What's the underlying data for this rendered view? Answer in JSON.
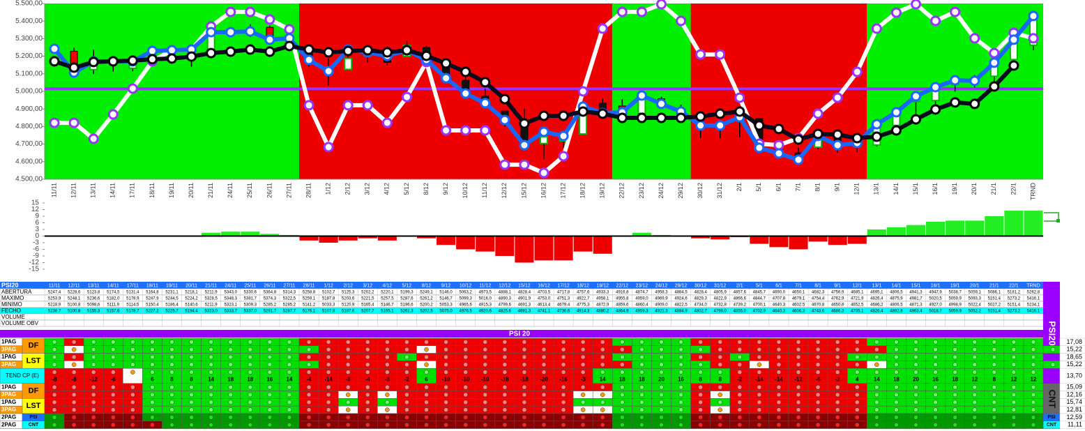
{
  "chart_data": [
    {
      "type": "candlestick",
      "categories": [
        "11/11",
        "12/11",
        "13/11",
        "14/11",
        "17/11",
        "18/11",
        "19/11",
        "20/11",
        "21/11",
        "24/11",
        "25/11",
        "26/11",
        "27/11",
        "28/11",
        "1/12",
        "2/12",
        "3/12",
        "4/12",
        "5/12",
        "8/12",
        "9/12",
        "10/12",
        "11/12",
        "12/12",
        "15/12",
        "16/12",
        "17/12",
        "18/12",
        "19/12",
        "22/12",
        "23/12",
        "24/12",
        "29/12",
        "30/12",
        "31/12",
        "2/1",
        "5/1",
        "6/1",
        "7/1",
        "8/1",
        "9/1",
        "12/1",
        "13/1",
        "14/1",
        "15/1",
        "16/1",
        "19/1",
        "20/1",
        "21/1",
        "22/1",
        "TRND"
      ],
      "ylim": [
        4500,
        5500
      ],
      "yticks": [
        {
          "value": 4500,
          "label": "4.500,00"
        },
        {
          "value": 4600,
          "label": "4.600,00"
        },
        {
          "value": 4700,
          "label": "4.700,00"
        },
        {
          "value": 4800,
          "label": "4.800,00"
        },
        {
          "value": 4900,
          "label": "4.900,00"
        },
        {
          "value": 5000,
          "label": "5.000,00"
        },
        {
          "value": 5100,
          "label": "5.100,00"
        },
        {
          "value": 5200,
          "label": "5.200,00"
        },
        {
          "value": 5300,
          "label": "5.300,00"
        },
        {
          "value": 5400,
          "label": "5.400,00"
        },
        {
          "value": 5500,
          "label": "5.500,00"
        }
      ],
      "zones": [
        {
          "start": "11/11",
          "end": "27/11",
          "color": "#00ee00"
        },
        {
          "start": "28/11",
          "end": "19/12",
          "color": "#ee0000"
        },
        {
          "start": "22/12",
          "end": "29/12",
          "color": "#00ee00"
        },
        {
          "start": "30/12",
          "end": "12/1",
          "color": "#ee0000"
        },
        {
          "start": "13/1",
          "end": "TRND",
          "color": "#00ee00"
        }
      ],
      "reference_line": {
        "value": 5015,
        "color": "#9933ff"
      },
      "candle_colors": {
        "up": "#ffffff",
        "up_edge": "#00bb00",
        "down": "#ee0000",
        "down_on_red": "#111111",
        "wick": "#000000"
      },
      "candles": {
        "open": [
          5247.4,
          5228.6,
          5123.8,
          5174.5,
          5131.4,
          5164.8,
          5231.1,
          5218.1,
          5211.9,
          5343.0,
          5330.6,
          5364.8,
          5314.3,
          5258.8,
          5102.7,
          5125.3,
          5202.2,
          5220.1,
          5199.3,
          5249.1,
          5146.0,
          5063.2,
          4973.5,
          4888.1,
          4828.4,
          4703.5,
          4717.8,
          4757.6,
          4933.3,
          4916.8,
          4874.7,
          4958.3,
          4884.5,
          4828.4,
          4805.9,
          4857.6,
          4845.7,
          4690.0,
          4650.1,
          4682.3,
          4756.9,
          4685.1,
          4695.1,
          4806.5,
          4941.3,
          4947.9,
          5038.7,
          5059.1,
          5086.1,
          5181.2,
          5262.8
        ],
        "high": [
          5253.9,
          5248.1,
          5236.6,
          5182.0,
          5178.9,
          5247.9,
          5244.5,
          5224.2,
          5328.5,
          5348.3,
          5381.7,
          5374.3,
          5322.5,
          5259.1,
          5187.8,
          5203.6,
          5221.5,
          5257.5,
          5287.6,
          5261.2,
          5146.7,
          5099.3,
          5016.0,
          4890.3,
          4901.9,
          4753.0,
          4751.3,
          4922.7,
          4958.1,
          4955.8,
          4959.0,
          4969.9,
          4924.6,
          4829.3,
          4822.9,
          4866.6,
          4844.7,
          4707.8,
          4679.1,
          4754.4,
          4762.9,
          4721.9,
          4826.4,
          4875.9,
          4981.7,
          5020.5,
          5059.9,
          5093.3,
          5151.4,
          5273.2,
          5416.1
        ],
        "low": [
          5218.9,
          5100.8,
          5098.6,
          5111.9,
          5114.5,
          5150.4,
          5186.4,
          5140.6,
          5211.9,
          5323.1,
          5309.3,
          5285.2,
          5285.2,
          5141.2,
          5033.3,
          5120.9,
          5165.4,
          5146.7,
          5196.6,
          5200.2,
          5053.3,
          4965.6,
          4915.3,
          4799.6,
          4691.3,
          4613.4,
          4679.4,
          4775.3,
          4872.9,
          4859.6,
          4860.4,
          4909.0,
          4822.5,
          4734.0,
          4732.8,
          4739.2,
          4700.1,
          4640.3,
          4602.5,
          4670.8,
          4650.6,
          4652.5,
          4686.2,
          4806.5,
          4871.3,
          4927.0,
          4998.9,
          5022.4,
          5027.2,
          5151.4,
          5234.1
        ],
        "close": [
          5238.7,
          5100.8,
          5155.3,
          5157.6,
          5178.7,
          5227.2,
          5225.7,
          5194.4,
          5323.0,
          5333.7,
          5337.0,
          5291.7,
          5287.7,
          5176.1,
          5107.8,
          5187.6,
          5207.7,
          5165.1,
          5261.3,
          5202.5,
          5075.0,
          4976.5,
          4920.6,
          4825.6,
          4691.3,
          4741.1,
          4736.6,
          4914.3,
          4880.2,
          4864.9,
          4959.3,
          4921.3,
          4884.9,
          4802.7,
          4799.0,
          4855.0,
          4702.9,
          4640.3,
          4606.3,
          4743.6,
          4686.3,
          4705.1,
          4826.4,
          4892.8,
          4963.4,
          5018.7,
          5059.9,
          5052.2,
          5151.4,
          5273.2,
          5416.1
        ]
      },
      "lines": [
        {
          "color": "#ffffff",
          "marker_fill": "#ffffff",
          "marker_edge": "#9933ff",
          "values": [
            4821,
            4821,
            4730,
            4869,
            5016,
            5171,
            5234,
            5238,
            5369,
            5452,
            5452,
            5409,
            5353,
            4921,
            4683,
            4921,
            4921,
            4821,
            4968,
            5167,
            4778,
            4778,
            4778,
            4583,
            4583,
            4536,
            4631,
            5000,
            5357,
            5452,
            5452,
            5496,
            5401,
            5210,
            5210,
            4964,
            4702,
            4694,
            4734,
            4873,
            4964,
            5111,
            5357,
            5448,
            5496,
            5401,
            5452,
            5302,
            5218,
            5333,
            5302
          ]
        },
        {
          "color": "#1a66ff",
          "marker_fill": "#ffffff",
          "marker_edge": "#1a66ff",
          "values": [
            5242,
            5107,
            5171,
            5171,
            5171,
            5230,
            5234,
            5238,
            5337,
            5337,
            5341,
            5294,
            5302,
            5179,
            5115,
            5238,
            5222,
            5202,
            5234,
            5179,
            5075,
            4988,
            4933,
            4837,
            4694,
            4770,
            4746,
            4913,
            4877,
            4881,
            4976,
            4929,
            4885,
            4806,
            4806,
            4853,
            4679,
            4647,
            4611,
            4746,
            4694,
            4706,
            4813,
            4881,
            4972,
            5024,
            5063,
            5060,
            5163,
            5294,
            5429
          ]
        },
        {
          "color": "#0a0a1e",
          "marker_fill": "#ffffff",
          "marker_edge": "#000000",
          "values": [
            5171,
            5135,
            5167,
            5171,
            5175,
            5183,
            5187,
            5198,
            5218,
            5226,
            5238,
            5226,
            5258,
            5238,
            5222,
            5230,
            5234,
            5222,
            5234,
            5202,
            5159,
            5111,
            5052,
            4956,
            4817,
            4861,
            4861,
            4885,
            4873,
            4849,
            4849,
            4849,
            4849,
            4857,
            4873,
            4885,
            4806,
            4786,
            4726,
            4758,
            4754,
            4734,
            4742,
            4778,
            4841,
            4897,
            4937,
            4929,
            5028,
            5147,
            null
          ]
        }
      ]
    },
    {
      "type": "bar",
      "ylim": [
        -15,
        15
      ],
      "yticks": [
        15,
        12,
        9,
        6,
        3,
        0,
        -3,
        -6,
        -9,
        -12,
        -15
      ],
      "pos_color": "#22ee22",
      "neg_color": "#ee0000",
      "values": [
        0,
        0,
        0,
        0,
        0,
        0,
        0,
        0,
        1.5,
        2,
        2,
        1,
        0.5,
        -2,
        -3,
        -2,
        -1,
        -2,
        0,
        -1,
        -4,
        -6,
        -7,
        -9,
        -12,
        -11,
        -11,
        -7,
        -8,
        0,
        1.5,
        0.5,
        0,
        -1,
        -1.5,
        -0.5,
        -3.5,
        -5,
        -6,
        -2.5,
        -4,
        -3.5,
        3,
        4,
        5,
        6.5,
        7,
        7,
        9,
        11.5,
        11.5
      ]
    }
  ],
  "table": {
    "title": "PSI20",
    "header_color": "#1f6fff",
    "rows": [
      {
        "label": "ABERTURA",
        "cells": [
          "5247,4",
          "5228,6",
          "5123,8",
          "5174,5",
          "5131,4",
          "5164,8",
          "5231,1",
          "5218,1",
          "5211,9",
          "5343,0",
          "5330,6",
          "5364,8",
          "5314,3",
          "5258,8",
          "5102,7",
          "5125,3",
          "5202,2",
          "5220,1",
          "5199,3",
          "5249,1",
          "5146,0",
          "5063,2",
          "4973,5",
          "4888,1",
          "4828,4",
          "4703,5",
          "4717,8",
          "4757,6",
          "4933,3",
          "4916,8",
          "4874,7",
          "4958,3",
          "4884,5",
          "4828,4",
          "4805,9",
          "4857,6",
          "4845,7",
          "4690,0",
          "4650,1",
          "4682,3",
          "4756,9",
          "4685,1",
          "4695,1",
          "4806,5",
          "4941,3",
          "4947,9",
          "5038,7",
          "5059,1",
          "5086,1",
          "5181,2",
          "5262,8"
        ]
      },
      {
        "label": "MAXIMO",
        "cells": [
          "5253,9",
          "5248,1",
          "5236,6",
          "5182,0",
          "5178,9",
          "5247,9",
          "5244,5",
          "5224,2",
          "5328,5",
          "5348,3",
          "5381,7",
          "5374,3",
          "5322,5",
          "5259,1",
          "5187,8",
          "5203,6",
          "5221,5",
          "5257,5",
          "5287,6",
          "5261,2",
          "5146,7",
          "5099,3",
          "5016,0",
          "4890,3",
          "4901,9",
          "4753,0",
          "4751,3",
          "4922,7",
          "4958,1",
          "4955,8",
          "4959,0",
          "4969,9",
          "4924,6",
          "4829,3",
          "4822,9",
          "4866,6",
          "4844,7",
          "4707,8",
          "4679,1",
          "4754,4",
          "4762,9",
          "4721,9",
          "4826,4",
          "4875,9",
          "4981,7",
          "5020,5",
          "5059,9",
          "5093,3",
          "5151,4",
          "5273,2",
          "5416,1"
        ]
      },
      {
        "label": "MINIMO",
        "cells": [
          "5218,9",
          "5100,8",
          "5098,6",
          "5111,9",
          "5114,5",
          "5150,4",
          "5186,4",
          "5140,6",
          "5211,9",
          "5323,1",
          "5309,3",
          "5285,2",
          "5285,2",
          "5141,2",
          "5033,3",
          "5120,9",
          "5165,4",
          "5146,7",
          "5196,6",
          "5200,2",
          "5053,3",
          "4965,6",
          "4915,3",
          "4799,6",
          "4691,3",
          "4613,4",
          "4679,4",
          "4775,3",
          "4872,9",
          "4859,6",
          "4860,4",
          "4909,0",
          "4822,5",
          "4734,0",
          "4732,8",
          "4739,2",
          "4700,1",
          "4640,3",
          "4602,5",
          "4670,8",
          "4650,6",
          "4652,5",
          "4686,2",
          "4806,5",
          "4871,3",
          "4927,0",
          "4998,9",
          "5022,4",
          "5027,2",
          "5151,4",
          "5234,1"
        ]
      },
      {
        "label": "FECHO",
        "color": "#00ffff",
        "cells": [
          "5238,7",
          "5100,8",
          "5155,3",
          "5157,6",
          "5178,7",
          "5227,2",
          "5225,7",
          "5194,4",
          "5323,0",
          "5333,7",
          "5337,0",
          "5291,7",
          "5287,7",
          "5176,1",
          "5107,8",
          "5187,6",
          "5207,7",
          "5165,1",
          "5261,3",
          "5202,5",
          "5075,0",
          "4976,5",
          "4920,6",
          "4825,6",
          "4691,3",
          "4741,1",
          "4736,6",
          "4914,3",
          "4880,2",
          "4864,9",
          "4959,3",
          "4921,3",
          "4884,9",
          "4802,7",
          "4799,0",
          "4855,0",
          "4702,9",
          "4640,3",
          "4606,3",
          "4743,6",
          "4686,3",
          "4705,1",
          "4826,4",
          "4892,8",
          "4963,4",
          "5018,7",
          "5059,9",
          "5052,2",
          "5151,4",
          "5273,2",
          "5416,1"
        ]
      },
      {
        "label": "VOLUME"
      },
      {
        "label": "VOLUME OBV"
      }
    ]
  },
  "signals": {
    "title": "PSI 20",
    "title_color": "#9900ff",
    "side_labels": [
      "PSI20",
      "CNT"
    ],
    "cell_colors": {
      "g": [
        "#00e000",
        "#66ff66"
      ],
      "r": [
        "#ee0000",
        "#ff8080"
      ],
      "o": [
        "#ffffff",
        "#ff9900"
      ],
      "G": [
        "#009900",
        "#22dd22"
      ],
      "R": [
        "#880000",
        "#ff2222"
      ]
    },
    "rows": [
      {
        "label": "1PAG",
        "tag": "DF",
        "tag_color": "#ff9900",
        "cells": "grgggggggggggrrrrrrrrrrrrrrrrggggrrrrrrrrrggggggggg",
        "score": "17,08"
      },
      {
        "label": "3PAG",
        "label_color": "#ff9900",
        "cells": "goggggggggggggrrrrrorrrrrrrrrrggggrrrrrrrrrggggggggg",
        "score": "15,22"
      },
      {
        "label": "1PAG",
        "tag": "LST",
        "tag_color": "#ffff00",
        "cells": "grgggggggggggrrrrrgrrrrrrrrrrggggrrgrrrrrgggggggggg",
        "score": "18,65"
      },
      {
        "label": "3PAG",
        "label_color": "#ff9900",
        "cells": "goggggggggggggrrrrrorrrrrrrrrrggggrrorrrrroggggggggg",
        "score": "15,22"
      },
      {
        "label": "TEND CP (E)",
        "label_color": "#00ffff",
        "values": [
          -8,
          -8,
          -12,
          -6,
          null,
          6,
          8,
          8,
          14,
          18,
          18,
          16,
          14,
          -4,
          -14,
          -8,
          -4,
          -8,
          -2,
          6,
          -10,
          -10,
          -10,
          -18,
          -18,
          -20,
          -16,
          -3,
          14,
          18,
          18,
          20,
          16,
          8,
          8,
          -2,
          -14,
          -14,
          -12,
          -6,
          -2,
          4,
          14,
          18,
          20,
          16,
          18,
          12,
          8,
          12,
          12
        ],
        "score": "13,70"
      },
      {
        "label": "1PAG",
        "tag": "DF",
        "tag_color": "#ff9900",
        "cells": "rrrrrggggggggrrrrrrrrrrrrrrrrggggrrrrrrrrrggggggggg",
        "score": "15,09"
      },
      {
        "label": "3PAG",
        "label_color": "#ff9900",
        "cells": "rrrrrggggggggrrororrrrrrrrrooggggrorrrrrrrggggggggg",
        "score": "12,16"
      },
      {
        "label": "1PAG",
        "tag": "LST",
        "tag_color": "#ffff00",
        "cells": "rrrrrggggggggrrgrgrrrrrrrrrggggggrgrrrrrrrggggggggg",
        "score": "15,74"
      },
      {
        "label": "3PAG",
        "label_color": "#ff9900",
        "cells": "rrrrrggggggggrrororrrrrrrrrooggggrorrrrrrrggggggggg",
        "score": "12,81"
      },
      {
        "label": "2PAG",
        "tag": "PSI",
        "tag_color": "#1f6fff",
        "cells": "GRRRRGGGGGGGGRRRRRRRRRRRRRRRRGGGGRRRRRRRRRGGGGGGGGG",
        "score": "12,59"
      },
      {
        "label": "2PAG",
        "tag": "CNT",
        "tag_color": "#00ffff",
        "cells": "GRRRRRGGGGGGGRRRRRRRRRRRRRRRRGGGGRRRRRRRRRGGGGGGGGG",
        "score": "11,11"
      }
    ]
  }
}
